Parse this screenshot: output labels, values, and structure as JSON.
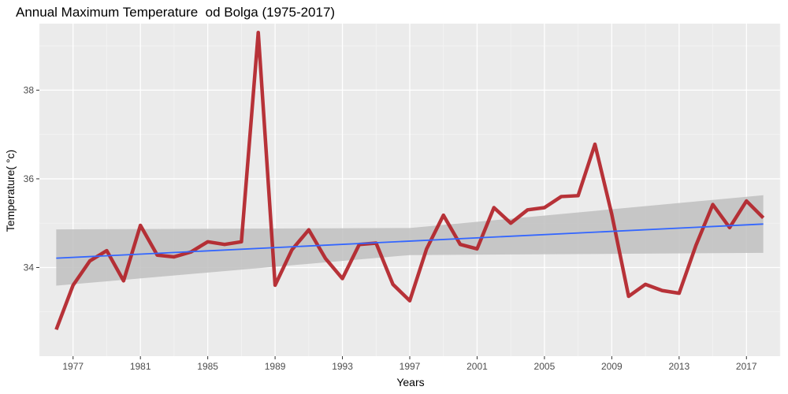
{
  "chart_data": {
    "type": "line",
    "title": "Annual Maximum Temperature  od Bolga (1975-2017)",
    "xlabel": "Years",
    "ylabel": "Temperature( °c)",
    "xlim": [
      1975,
      2019
    ],
    "ylim": [
      32.0,
      39.5
    ],
    "x_ticks": [
      1977,
      1981,
      1985,
      1989,
      1993,
      1997,
      2001,
      2005,
      2009,
      2013,
      2017
    ],
    "y_ticks": [
      34,
      36,
      38
    ],
    "grid": true,
    "series": [
      {
        "kind": "observed",
        "color": "#B22228",
        "x": [
          1976,
          1977,
          1978,
          1979,
          1980,
          1981,
          1982,
          1983,
          1984,
          1985,
          1986,
          1987,
          1988,
          1989,
          1990,
          1991,
          1992,
          1993,
          1994,
          1995,
          1996,
          1997,
          1998,
          1999,
          2000,
          2001,
          2002,
          2003,
          2004,
          2005,
          2006,
          2007,
          2008,
          2009,
          2010,
          2011,
          2012,
          2013,
          2014,
          2015,
          2016,
          2017,
          2018
        ],
        "values": [
          32.6,
          33.6,
          34.15,
          34.38,
          33.7,
          34.95,
          34.28,
          34.24,
          34.35,
          34.58,
          34.52,
          34.58,
          39.3,
          33.6,
          34.4,
          34.85,
          34.2,
          33.75,
          34.52,
          34.55,
          33.62,
          33.25,
          34.42,
          35.18,
          34.52,
          34.42,
          35.35,
          35.0,
          35.3,
          35.35,
          35.6,
          35.62,
          36.78,
          35.2,
          33.35,
          33.62,
          33.48,
          33.42,
          34.5,
          35.42,
          34.9,
          35.5,
          35.12
        ]
      },
      {
        "kind": "linear-fit",
        "color": "#3366FF",
        "x": [
          1976,
          2018
        ],
        "values": [
          34.21,
          34.98
        ]
      }
    ],
    "confidence_band": {
      "color": "#bfbfbf",
      "x": [
        1976,
        1997,
        2018
      ],
      "lower": [
        33.59,
        34.28,
        34.33
      ],
      "upper": [
        34.86,
        34.89,
        35.63
      ]
    }
  }
}
